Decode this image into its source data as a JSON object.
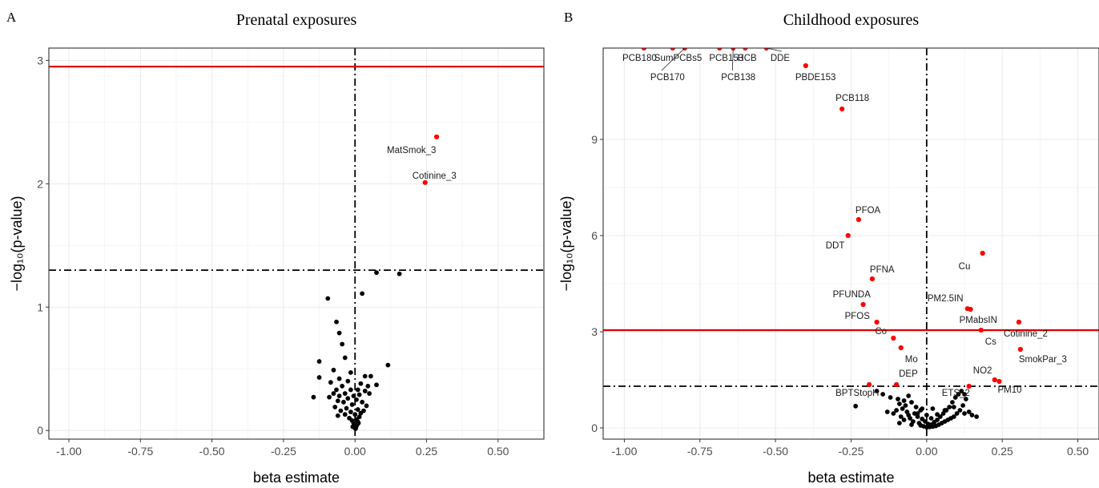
{
  "colors": {
    "significant": "#ff0000",
    "nonsignificant": "#000000",
    "threshold": "#e00000",
    "grid": "#ebebeb"
  },
  "chart_data": [
    {
      "panel_letter": "A",
      "type": "scatter",
      "title": "Prenatal exposures",
      "xlabel": "beta estimate",
      "ylabel": "−log₁₀(p-value)",
      "xlim": [
        -1.07,
        0.66
      ],
      "ylim": [
        -0.07,
        3.1
      ],
      "xticks": [
        -1.0,
        -0.75,
        -0.5,
        -0.25,
        0.0,
        0.25,
        0.5
      ],
      "xtick_labels": [
        "-1.00",
        "-0.75",
        "-0.50",
        "-0.25",
        "0.00",
        "0.25",
        "0.50"
      ],
      "yticks": [
        0,
        1,
        2,
        3
      ],
      "ytick_labels": [
        "0",
        "1",
        "2",
        "3"
      ],
      "grid": true,
      "hlines": [
        {
          "y": 2.95,
          "style": "solid",
          "color": "red"
        },
        {
          "y": 1.3,
          "style": "dashdot",
          "color": "black"
        }
      ],
      "vlines": [
        {
          "x": 0.0,
          "style": "dashdot",
          "color": "black"
        }
      ],
      "labeled_points": [
        {
          "label": "MatSmok_3",
          "x": 0.285,
          "y": 2.38,
          "sig": true
        },
        {
          "label": "Cotinine_3",
          "x": 0.245,
          "y": 2.01,
          "sig": true
        }
      ],
      "points": [
        [
          0.075,
          1.28
        ],
        [
          0.155,
          1.27
        ],
        [
          0.025,
          1.11
        ],
        [
          -0.095,
          1.07
        ],
        [
          -0.065,
          0.88
        ],
        [
          -0.055,
          0.79
        ],
        [
          -0.045,
          0.7
        ],
        [
          0.115,
          0.53
        ],
        [
          -0.125,
          0.56
        ],
        [
          -0.035,
          0.59
        ],
        [
          -0.075,
          0.49
        ],
        [
          -0.015,
          0.47
        ],
        [
          -0.125,
          0.43
        ],
        [
          0.035,
          0.44
        ],
        [
          0.055,
          0.44
        ],
        [
          -0.055,
          0.42
        ],
        [
          -0.025,
          0.4
        ],
        [
          -0.085,
          0.39
        ],
        [
          0.075,
          0.37
        ],
        [
          0.02,
          0.38
        ],
        [
          0.045,
          0.36
        ],
        [
          -0.045,
          0.36
        ],
        [
          -0.065,
          0.33
        ],
        [
          -0.015,
          0.33
        ],
        [
          0.01,
          0.33
        ],
        [
          0.035,
          0.32
        ],
        [
          -0.035,
          0.3
        ],
        [
          -0.075,
          0.3
        ],
        [
          -0.055,
          0.28
        ],
        [
          -0.005,
          0.28
        ],
        [
          0.015,
          0.29
        ],
        [
          0.05,
          0.3
        ],
        [
          -0.145,
          0.27
        ],
        [
          -0.09,
          0.27
        ],
        [
          -0.025,
          0.26
        ],
        [
          0.005,
          0.25
        ],
        [
          -0.06,
          0.24
        ],
        [
          -0.04,
          0.23
        ],
        [
          0.025,
          0.23
        ],
        [
          -0.01,
          0.21
        ],
        [
          0.04,
          0.2
        ],
        [
          -0.07,
          0.19
        ],
        [
          -0.03,
          0.18
        ],
        [
          0.01,
          0.17
        ],
        [
          0.03,
          0.16
        ],
        [
          -0.05,
          0.16
        ],
        [
          -0.015,
          0.15
        ],
        [
          0.02,
          0.14
        ],
        [
          -0.035,
          0.13
        ],
        [
          0.0,
          0.13
        ],
        [
          -0.06,
          0.12
        ],
        [
          0.015,
          0.11
        ],
        [
          -0.02,
          0.1
        ],
        [
          0.005,
          0.09
        ],
        [
          -0.01,
          0.08
        ],
        [
          0.01,
          0.07
        ],
        [
          -0.005,
          0.06
        ],
        [
          0.008,
          0.05
        ],
        [
          -0.003,
          0.04
        ],
        [
          0.004,
          0.03
        ],
        [
          0.0,
          0.02
        ],
        [
          0.012,
          0.06
        ],
        [
          -0.008,
          0.03
        ],
        [
          0.002,
          0.015
        ]
      ]
    },
    {
      "panel_letter": "B",
      "type": "scatter",
      "title": "Childhood exposures",
      "xlabel": "beta estimate",
      "ylabel": "−log₁₀(p-value)",
      "xlim": [
        -1.07,
        0.57
      ],
      "ylim": [
        -0.35,
        11.85
      ],
      "xticks": [
        -1.0,
        -0.75,
        -0.5,
        -0.25,
        0.0,
        0.25,
        0.5
      ],
      "xtick_labels": [
        "-1.00",
        "-0.75",
        "-0.50",
        "-0.25",
        "0.00",
        "0.25",
        "0.50"
      ],
      "yticks": [
        0,
        3,
        6,
        9
      ],
      "ytick_labels": [
        "0",
        "3",
        "6",
        "9"
      ],
      "grid": true,
      "hlines": [
        {
          "y": 3.05,
          "style": "solid",
          "color": "red"
        },
        {
          "y": 1.3,
          "style": "dashdot",
          "color": "black"
        }
      ],
      "vlines": [
        {
          "x": 0.0,
          "style": "dashdot",
          "color": "black"
        }
      ],
      "labeled_points": [
        {
          "label": "PCB180",
          "x": -0.935,
          "y": 11.85,
          "sig": true
        },
        {
          "label": "SumPCBs5",
          "x": -0.84,
          "y": 11.85,
          "sig": true
        },
        {
          "label": "PCB170",
          "x": -0.8,
          "y": 11.85,
          "sig": true
        },
        {
          "label": "PCB153",
          "x": -0.685,
          "y": 11.85,
          "sig": true
        },
        {
          "label": "PCB138",
          "x": -0.64,
          "y": 11.85,
          "sig": true
        },
        {
          "label": "HCB",
          "x": -0.6,
          "y": 11.85,
          "sig": true
        },
        {
          "label": "DDE",
          "x": -0.53,
          "y": 11.85,
          "sig": true
        },
        {
          "label": "PBDE153",
          "x": -0.4,
          "y": 11.3,
          "sig": true
        },
        {
          "label": "PCB118",
          "x": -0.28,
          "y": 9.95,
          "sig": true
        },
        {
          "label": "PFOA",
          "x": -0.225,
          "y": 6.5,
          "sig": true
        },
        {
          "label": "DDT",
          "x": -0.26,
          "y": 6.0,
          "sig": true
        },
        {
          "label": "PFNA",
          "x": -0.18,
          "y": 4.65,
          "sig": true
        },
        {
          "label": "PFUNDA",
          "x": -0.21,
          "y": 3.85,
          "sig": true
        },
        {
          "label": "PFOS",
          "x": -0.165,
          "y": 3.3,
          "sig": true
        },
        {
          "label": "Co",
          "x": -0.11,
          "y": 2.8,
          "sig": true
        },
        {
          "label": "Mo",
          "x": -0.085,
          "y": 2.5,
          "sig": true
        },
        {
          "label": "DEP",
          "x": -0.1,
          "y": 1.35,
          "sig": true
        },
        {
          "label": "BPTStopH",
          "x": -0.19,
          "y": 1.35,
          "sig": true
        },
        {
          "label": "Cu",
          "x": 0.185,
          "y": 5.45,
          "sig": true
        },
        {
          "label": "PM2.5IN",
          "x": 0.135,
          "y": 3.72,
          "sig": true
        },
        {
          "label": "PMabsIN",
          "x": 0.145,
          "y": 3.7,
          "sig": true
        },
        {
          "label": "Cotinine_2",
          "x": 0.305,
          "y": 3.3,
          "sig": true
        },
        {
          "label": "Cs",
          "x": 0.18,
          "y": 3.05,
          "sig": true
        },
        {
          "label": "SmokPar_3",
          "x": 0.31,
          "y": 2.45,
          "sig": true
        },
        {
          "label": "NO2",
          "x": 0.225,
          "y": 1.5,
          "sig": true
        },
        {
          "label": "PM10",
          "x": 0.24,
          "y": 1.45,
          "sig": true
        },
        {
          "label": "ETS_2",
          "x": 0.14,
          "y": 1.3,
          "sig": true
        }
      ],
      "points": [
        [
          -0.235,
          0.68
        ],
        [
          -0.165,
          1.15
        ],
        [
          -0.145,
          1.05
        ],
        [
          -0.12,
          0.95
        ],
        [
          -0.095,
          0.9
        ],
        [
          -0.075,
          0.85
        ],
        [
          -0.09,
          0.75
        ],
        [
          -0.07,
          0.7
        ],
        [
          -0.06,
          1.0
        ],
        [
          -0.05,
          0.8
        ],
        [
          -0.035,
          0.65
        ],
        [
          -0.02,
          0.55
        ],
        [
          -0.04,
          0.45
        ],
        [
          -0.06,
          0.4
        ],
        [
          -0.085,
          0.35
        ],
        [
          -0.1,
          0.55
        ],
        [
          -0.03,
          0.35
        ],
        [
          -0.015,
          0.28
        ],
        [
          -0.005,
          0.2
        ],
        [
          0.005,
          0.12
        ],
        [
          0.015,
          0.1
        ],
        [
          0.025,
          0.18
        ],
        [
          0.035,
          0.25
        ],
        [
          0.045,
          0.35
        ],
        [
          0.055,
          0.45
        ],
        [
          0.065,
          0.55
        ],
        [
          0.075,
          0.65
        ],
        [
          0.085,
          0.8
        ],
        [
          0.095,
          0.95
        ],
        [
          0.105,
          1.05
        ],
        [
          0.115,
          1.15
        ],
        [
          0.125,
          1.05
        ],
        [
          0.13,
          0.9
        ],
        [
          0.12,
          0.7
        ],
        [
          0.11,
          0.55
        ],
        [
          0.1,
          0.45
        ],
        [
          0.09,
          0.35
        ],
        [
          0.08,
          0.3
        ],
        [
          0.07,
          0.25
        ],
        [
          0.06,
          0.2
        ],
        [
          0.05,
          0.15
        ],
        [
          0.04,
          0.1
        ],
        [
          0.03,
          0.06
        ],
        [
          0.02,
          0.04
        ],
        [
          0.01,
          0.03
        ],
        [
          0.0,
          0.02
        ],
        [
          -0.01,
          0.05
        ],
        [
          -0.02,
          0.08
        ],
        [
          -0.025,
          0.15
        ],
        [
          -0.045,
          0.2
        ],
        [
          -0.055,
          0.3
        ],
        [
          -0.065,
          0.5
        ],
        [
          -0.08,
          0.6
        ],
        [
          -0.11,
          0.45
        ],
        [
          -0.13,
          0.5
        ],
        [
          0.14,
          0.5
        ],
        [
          0.15,
          0.4
        ],
        [
          0.165,
          0.35
        ],
        [
          0.125,
          0.45
        ],
        [
          0.09,
          0.65
        ],
        [
          -0.05,
          0.1
        ],
        [
          -0.03,
          0.45
        ],
        [
          0.015,
          0.3
        ],
        [
          0.035,
          0.42
        ],
        [
          0.06,
          0.55
        ],
        [
          -0.015,
          0.6
        ],
        [
          0.0,
          0.4
        ],
        [
          -0.075,
          0.25
        ],
        [
          -0.09,
          0.15
        ],
        [
          0.02,
          0.6
        ]
      ]
    }
  ]
}
